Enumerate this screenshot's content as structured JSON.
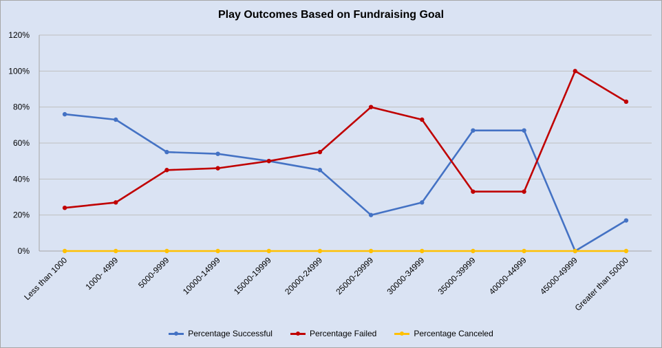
{
  "chart_data": {
    "type": "line",
    "title": "Play Outcomes Based on Fundraising Goal",
    "xlabel": "",
    "ylabel": "",
    "ylim": [
      0,
      120
    ],
    "yticks": [
      "0%",
      "20%",
      "40%",
      "60%",
      "80%",
      "100%",
      "120%"
    ],
    "grid": true,
    "legend_position": "bottom",
    "categories": [
      "Less than 1000",
      "1000- 4999",
      "5000-9999",
      "10000-14999",
      "15000-19999",
      "20000-24999",
      "25000-29999",
      "30000-34999",
      "35000-39999",
      "40000-44999",
      "45000-49999",
      "Greater than 50000"
    ],
    "series": [
      {
        "name": "Percentage Successful",
        "color": "#4472c4",
        "values": [
          76,
          73,
          55,
          54,
          50,
          45,
          20,
          27,
          67,
          67,
          0,
          17
        ]
      },
      {
        "name": "Percentage Failed",
        "color": "#c00000",
        "values": [
          24,
          27,
          45,
          46,
          50,
          55,
          80,
          73,
          33,
          33,
          100,
          83
        ]
      },
      {
        "name": "Percentage Canceled",
        "color": "#ffc000",
        "values": [
          0,
          0,
          0,
          0,
          0,
          0,
          0,
          0,
          0,
          0,
          0,
          0
        ]
      }
    ]
  }
}
